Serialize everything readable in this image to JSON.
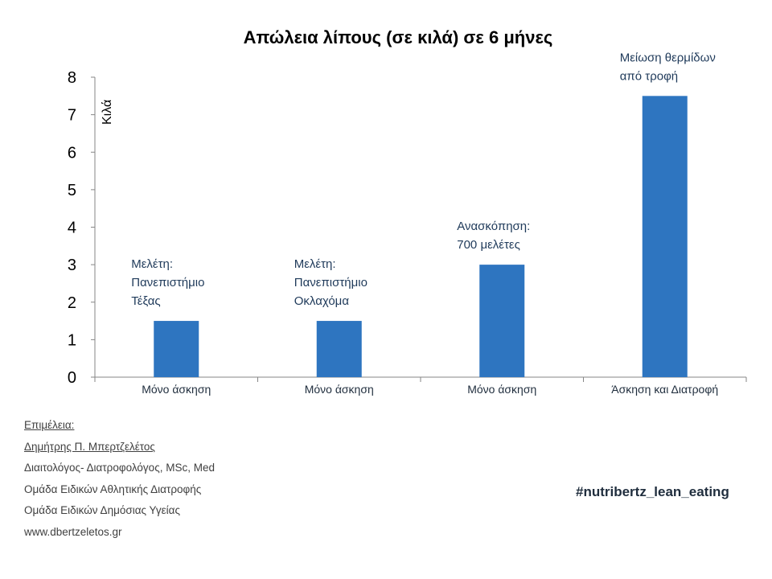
{
  "chart_data": {
    "type": "bar",
    "title": "Απώλεια λίπους (σε κιλά) σε 6 μήνες",
    "ylabel": "Κιλά",
    "xlabel": "",
    "ylim": [
      0,
      8
    ],
    "yticks": [
      "0",
      "1",
      "2",
      "3",
      "4",
      "5",
      "6",
      "7",
      "8"
    ],
    "categories": [
      "Μόνο άσκηση",
      "Μόνο άσκηση",
      "Μόνο άσκηση",
      "Άσκηση και Διατροφή"
    ],
    "values": [
      1.5,
      1.5,
      3,
      7.5
    ],
    "annotations": [
      [
        "Μελέτη:",
        "Πανεπιστήμιο",
        "Τέξας"
      ],
      [
        "Μελέτη:",
        "Πανεπιστήμιο",
        "Οκλαχόμα"
      ],
      [
        "Ανασκόπηση:",
        "700 μελέτες"
      ],
      [
        "Μείωση θερμίδων",
        "από τροφή"
      ]
    ],
    "bar_color": "#2e75c0",
    "grid": false
  },
  "credits": {
    "heading": "Επιμέλεια:",
    "name": "Δημήτρης Π. Μπερτζελέτος",
    "line1": "Διαιτολόγος- Διατροφολόγος, MSc, Med",
    "line2": "Ομάδα Ειδικών Αθλητικής Διατροφής",
    "line3": "Ομάδα Ειδικών Δημόσιας Υγείας",
    "website": "www.dbertzeletos.gr"
  },
  "hashtag": "#nutribertz_lean_eating"
}
